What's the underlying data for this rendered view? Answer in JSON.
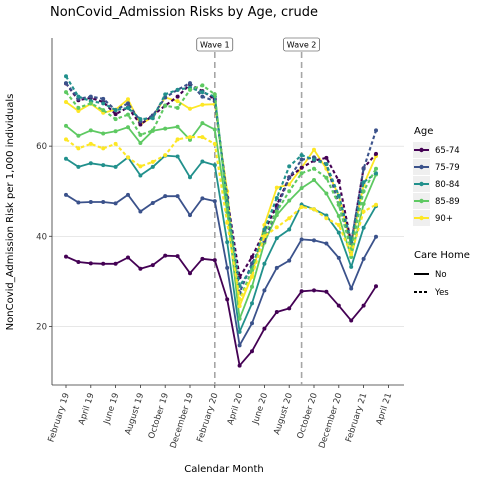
{
  "chart_data": {
    "type": "line",
    "title": "NonCovid_Admission Risks by Age, crude",
    "xlabel": "Calendar Month",
    "ylabel": "NonCovid_Admission Risk per 1,000 individuals",
    "ylim": [
      7,
      84
    ],
    "y_ticks": [
      20,
      40,
      60
    ],
    "x_ticks": [
      "February 19",
      "April 19",
      "June 19",
      "August 19",
      "October 19",
      "December 19",
      "February 20",
      "April 20",
      "June 20",
      "August 20",
      "October 20",
      "December 20",
      "February 21",
      "April 21"
    ],
    "months": [
      "Feb 19",
      "Mar 19",
      "Apr 19",
      "May 19",
      "Jun 19",
      "Jul 19",
      "Aug 19",
      "Sep 19",
      "Oct 19",
      "Nov 19",
      "Dec 19",
      "Jan 20",
      "Feb 20",
      "Mar 20",
      "Apr 20",
      "May 20",
      "Jun 20",
      "Jul 20",
      "Aug 20",
      "Sep 20",
      "Oct 20",
      "Nov 20",
      "Dec 20",
      "Jan 21",
      "Feb 21",
      "Mar 21"
    ],
    "annotations": [
      {
        "label": "Wave 1",
        "x": "Feb 20"
      },
      {
        "label": "Wave 2",
        "x": "Sep 20"
      }
    ],
    "legend": {
      "position": "right",
      "age_title": "Age",
      "care_title": "Care Home",
      "age_groups": [
        {
          "label": "65-74",
          "color": "#440154"
        },
        {
          "label": "75-79",
          "color": "#3b528b"
        },
        {
          "label": "80-84",
          "color": "#21908c"
        },
        {
          "label": "85-89",
          "color": "#5ec962"
        },
        {
          "label": "90+",
          "color": "#fde725"
        }
      ],
      "care_home": [
        {
          "label": "No",
          "dash": "solid"
        },
        {
          "label": "Yes",
          "dash": "dashed"
        }
      ]
    },
    "series": [
      {
        "age": "65-74",
        "care_home": "No",
        "values": [
          35.5,
          34.3,
          34.0,
          33.9,
          33.9,
          35.3,
          32.8,
          33.6,
          35.7,
          35.6,
          31.8,
          35.0,
          34.7,
          26.0,
          11.3,
          14.5,
          19.5,
          23.2,
          24.0,
          27.8,
          28.0,
          27.7,
          24.6,
          21.3,
          24.6,
          28.9
        ]
      },
      {
        "age": "75-79",
        "care_home": "No",
        "values": [
          49.2,
          47.5,
          47.6,
          47.6,
          47.3,
          49.2,
          45.5,
          47.4,
          48.9,
          48.9,
          44.7,
          48.4,
          47.8,
          33.0,
          15.8,
          20.7,
          28.0,
          33.0,
          34.6,
          39.3,
          39.1,
          38.4,
          35.2,
          28.4,
          35.0,
          39.9
        ]
      },
      {
        "age": "80-84",
        "care_home": "No",
        "values": [
          57.2,
          55.4,
          56.2,
          55.8,
          55.4,
          57.5,
          53.5,
          55.4,
          57.9,
          57.7,
          53.1,
          56.6,
          55.8,
          38.7,
          18.8,
          25.1,
          33.9,
          39.6,
          41.5,
          47.0,
          46.0,
          44.6,
          40.8,
          33.2,
          41.9,
          46.7
        ]
      },
      {
        "age": "85-89",
        "care_home": "No",
        "values": [
          64.5,
          62.3,
          63.5,
          62.8,
          63.3,
          64.2,
          60.7,
          63.4,
          63.9,
          64.3,
          61.4,
          65.1,
          63.7,
          45.4,
          21.7,
          28.8,
          38.6,
          44.7,
          47.9,
          50.7,
          52.5,
          49.5,
          44.5,
          35.4,
          47.2,
          53.7
        ]
      },
      {
        "age": "90+",
        "care_home": "No",
        "values": [
          69.8,
          67.8,
          69.4,
          67.4,
          68.1,
          70.4,
          64.8,
          66.5,
          70.8,
          70.0,
          68.3,
          69.2,
          69.3,
          50.0,
          24.5,
          31.2,
          42.5,
          50.8,
          51.5,
          55.2,
          59.2,
          55.0,
          49.0,
          37.9,
          51.4,
          57.8
        ]
      },
      {
        "age": "65-74",
        "care_home": "Yes",
        "values": [
          73.9,
          70.2,
          70.7,
          69.8,
          67.1,
          68.6,
          64.8,
          66.8,
          69.0,
          71.0,
          73.7,
          72.2,
          70.4,
          48.6,
          30.9,
          35.4,
          41.1,
          46.9,
          53.1,
          55.2,
          56.8,
          57.4,
          52.3,
          38.5,
          55.1,
          58.3
        ]
      },
      {
        "age": "75-79",
        "care_home": "Yes",
        "values": [
          74.0,
          70.5,
          71.0,
          70.5,
          68.0,
          69.5,
          65.5,
          66.8,
          70.8,
          72.5,
          74.0,
          71.0,
          70.0,
          48.5,
          27.5,
          34.0,
          39.0,
          46.0,
          53.0,
          57.0,
          57.5,
          56.0,
          47.0,
          38.5,
          55.0,
          63.5
        ]
      },
      {
        "age": "80-84",
        "care_home": "Yes",
        "values": [
          75.5,
          71.0,
          70.0,
          69.5,
          68.0,
          68.5,
          66.0,
          66.2,
          71.5,
          72.5,
          73.0,
          72.0,
          71.0,
          47.5,
          29.0,
          33.0,
          41.5,
          48.5,
          55.5,
          58.0,
          57.0,
          56.0,
          49.0,
          39.0,
          52.0,
          54.0
        ]
      },
      {
        "age": "85-89",
        "care_home": "Yes",
        "values": [
          72.0,
          68.5,
          69.5,
          68.0,
          66.0,
          67.0,
          62.5,
          63.5,
          69.0,
          68.5,
          72.5,
          73.5,
          71.5,
          47.0,
          26.0,
          32.5,
          40.5,
          45.5,
          50.0,
          54.0,
          55.0,
          53.0,
          47.0,
          37.0,
          50.0,
          55.0
        ]
      },
      {
        "age": "90+",
        "care_home": "Yes",
        "values": [
          61.5,
          59.5,
          60.5,
          59.5,
          60.5,
          57.5,
          55.5,
          56.5,
          58.0,
          61.5,
          62.0,
          62.0,
          60.5,
          43.0,
          26.0,
          31.0,
          40.0,
          42.0,
          44.0,
          46.5,
          46.0,
          44.0,
          42.5,
          36.0,
          45.5,
          47.0
        ]
      }
    ]
  }
}
